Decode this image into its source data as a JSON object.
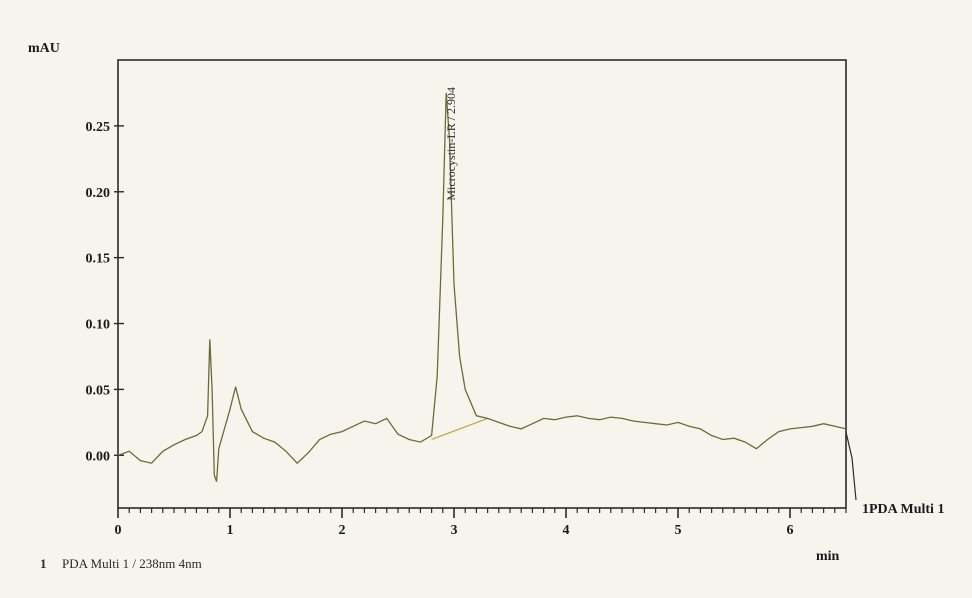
{
  "chart_data": {
    "type": "line",
    "y_unit": "mAU",
    "x_unit": "min",
    "xlim": [
      0,
      6.5
    ],
    "ylim": [
      -0.04,
      0.3
    ],
    "x_ticks": [
      0,
      1,
      2,
      3,
      4,
      5,
      6
    ],
    "y_ticks": [
      0.0,
      0.05,
      0.1,
      0.15,
      0.2,
      0.25
    ],
    "x_tick_labels": [
      "0",
      "1",
      "2",
      "3",
      "4",
      "5",
      "6"
    ],
    "y_tick_labels": [
      "0.00",
      "0.05",
      "0.10",
      "0.15",
      "0.20",
      "0.25"
    ],
    "series": [
      {
        "name": "1PDA Multi 1",
        "color": "#6d6a3a",
        "x": [
          0.0,
          0.1,
          0.2,
          0.3,
          0.4,
          0.5,
          0.6,
          0.7,
          0.75,
          0.8,
          0.82,
          0.84,
          0.86,
          0.88,
          0.9,
          0.95,
          1.0,
          1.05,
          1.1,
          1.2,
          1.3,
          1.4,
          1.5,
          1.6,
          1.7,
          1.8,
          1.9,
          2.0,
          2.1,
          2.2,
          2.3,
          2.4,
          2.5,
          2.6,
          2.7,
          2.8,
          2.85,
          2.9,
          2.93,
          2.96,
          3.0,
          3.05,
          3.1,
          3.15,
          3.2,
          3.3,
          3.4,
          3.5,
          3.6,
          3.7,
          3.8,
          3.9,
          4.0,
          4.1,
          4.2,
          4.3,
          4.4,
          4.5,
          4.6,
          4.7,
          4.8,
          4.9,
          5.0,
          5.1,
          5.2,
          5.3,
          5.4,
          5.5,
          5.6,
          5.7,
          5.8,
          5.9,
          6.0,
          6.1,
          6.2,
          6.3,
          6.4,
          6.5
        ],
        "y": [
          0.0,
          0.003,
          -0.004,
          -0.006,
          0.003,
          0.008,
          0.012,
          0.015,
          0.018,
          0.03,
          0.088,
          0.05,
          -0.015,
          -0.02,
          0.005,
          0.02,
          0.035,
          0.052,
          0.035,
          0.018,
          0.013,
          0.01,
          0.003,
          -0.006,
          0.002,
          0.012,
          0.016,
          0.018,
          0.022,
          0.026,
          0.024,
          0.028,
          0.016,
          0.012,
          0.01,
          0.015,
          0.06,
          0.18,
          0.275,
          0.24,
          0.13,
          0.075,
          0.05,
          0.04,
          0.03,
          0.028,
          0.025,
          0.022,
          0.02,
          0.024,
          0.028,
          0.027,
          0.029,
          0.03,
          0.028,
          0.027,
          0.029,
          0.028,
          0.026,
          0.025,
          0.024,
          0.023,
          0.025,
          0.022,
          0.02,
          0.015,
          0.012,
          0.013,
          0.01,
          0.005,
          0.012,
          0.018,
          0.02,
          0.021,
          0.022,
          0.024,
          0.022,
          0.02
        ]
      }
    ],
    "baseline_segment": {
      "x": [
        2.8,
        3.3
      ],
      "y": [
        0.012,
        0.028
      ]
    },
    "peak_annotation": {
      "label": "Microcystin-LR / 2.904",
      "x": 2.904,
      "y": 0.275
    },
    "line_tail_label": "1PDA Multi 1",
    "legend": {
      "number": "1",
      "text": "PDA Multi 1 / 238nm 4nm"
    },
    "grid": false,
    "legend_placement": "bottom-left"
  }
}
